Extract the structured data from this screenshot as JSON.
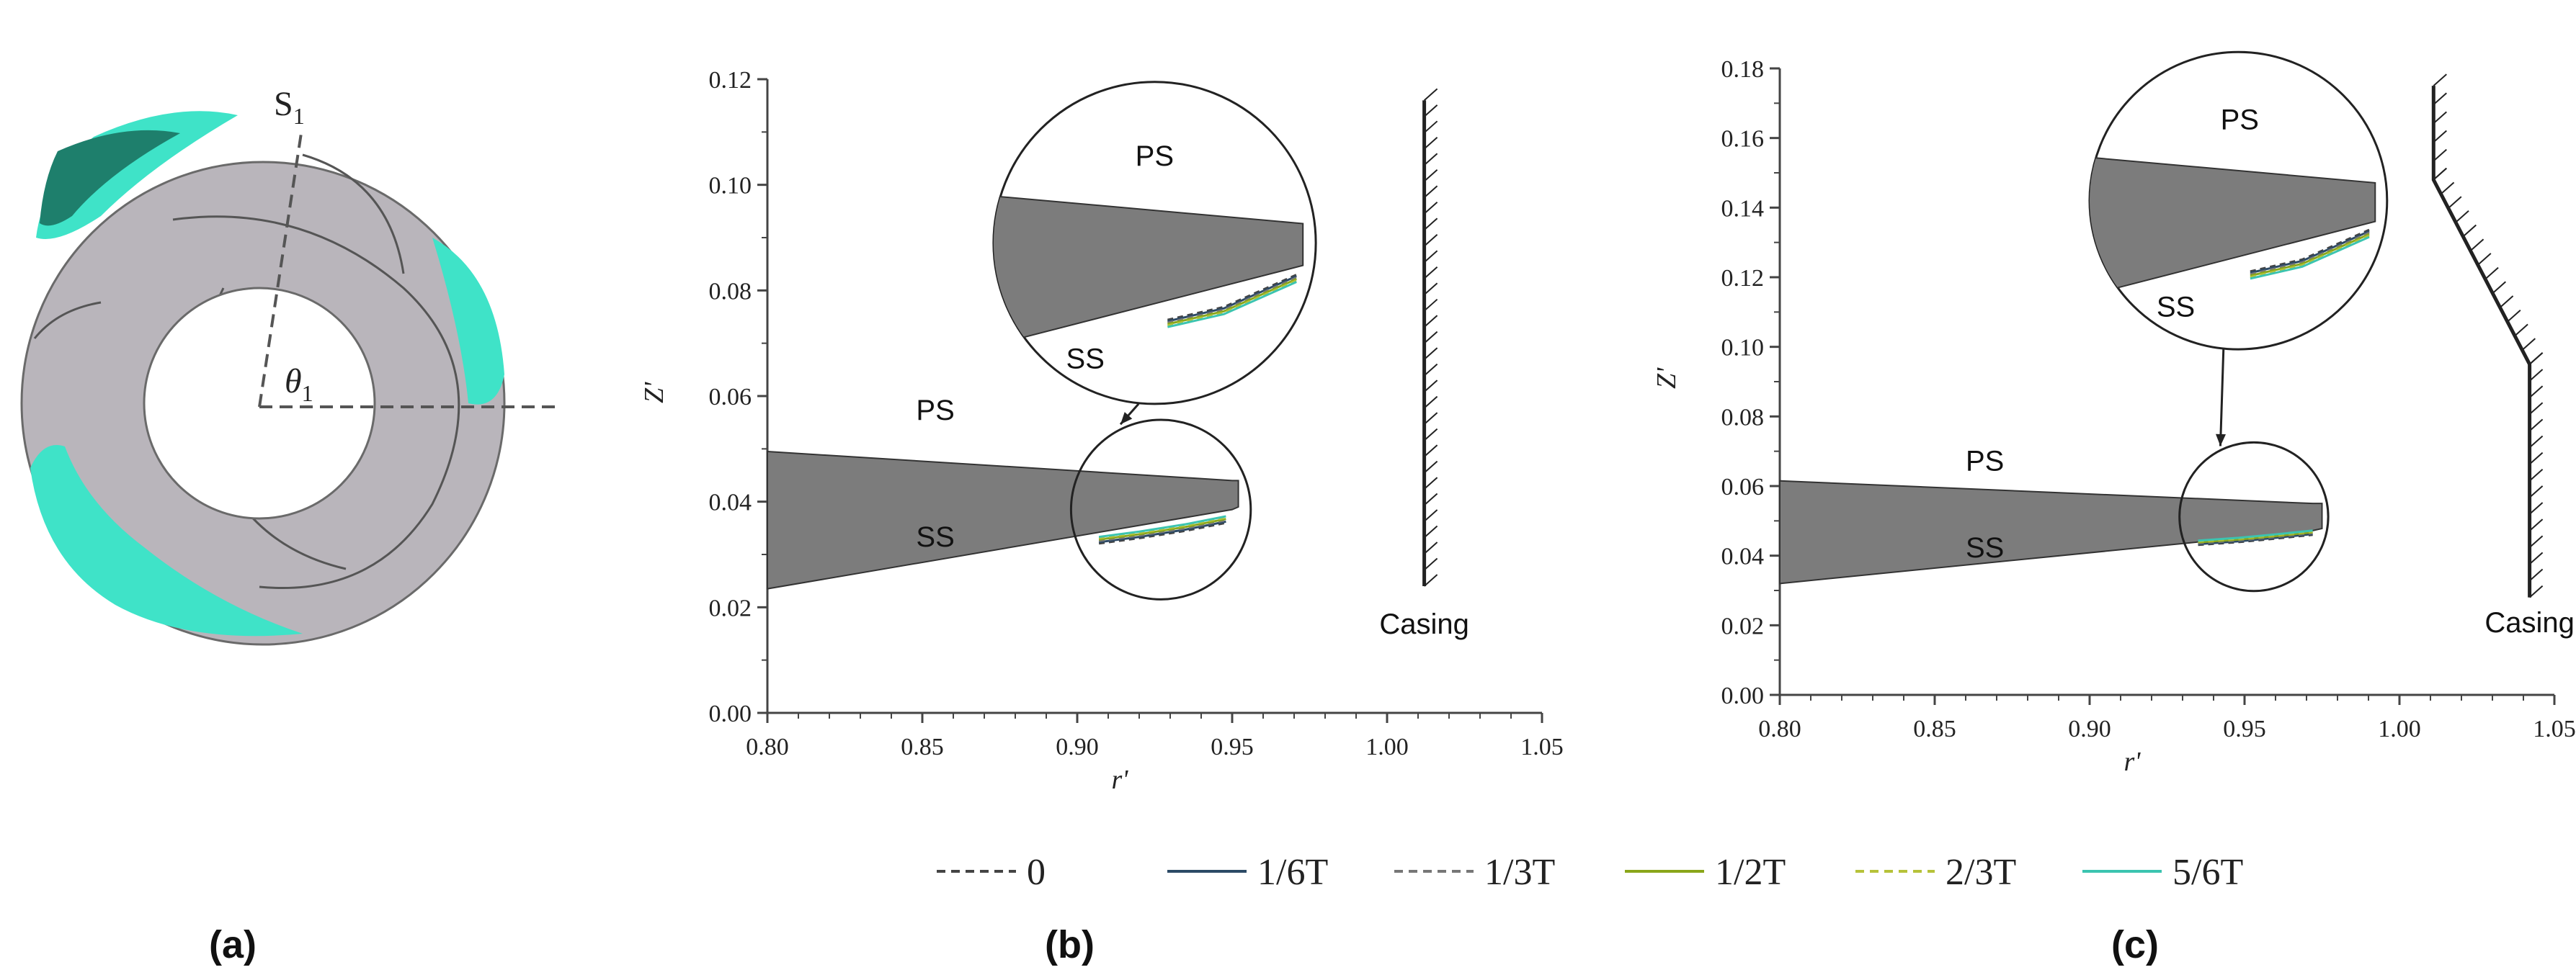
{
  "figure": {
    "panel_labels": {
      "a": "(a)",
      "b": "(b)",
      "c": "(c)"
    },
    "panel_a": {
      "s_label": "S",
      "s_subscript": "1",
      "theta_label": "θ",
      "theta_subscript": "1",
      "colors": {
        "hub": "#b9b5bb",
        "cavity": "#3fe3c8",
        "cavity_dark": "#1e7f6c",
        "outline": "#555555"
      }
    }
  },
  "legend": {
    "entries": [
      {
        "label": "0",
        "style": "dashed",
        "color": "#444444"
      },
      {
        "label": "1/6T",
        "style": "solid",
        "color": "#2c4a66"
      },
      {
        "label": "1/3T",
        "style": "dashed",
        "color": "#777777"
      },
      {
        "label": "1/2T",
        "style": "solid",
        "color": "#8aa61a"
      },
      {
        "label": "2/3T",
        "style": "dashed",
        "color": "#b6c23a"
      },
      {
        "label": "5/6T",
        "style": "solid",
        "color": "#3cc4b0"
      }
    ]
  },
  "chart_data": [
    {
      "id": "b",
      "type": "line",
      "xlabel": "r'",
      "ylabel": "Z'",
      "xlim": [
        0.8,
        1.05
      ],
      "ylim": [
        0.0,
        0.12
      ],
      "xticks": [
        0.8,
        0.85,
        0.9,
        0.95,
        1.0,
        1.05
      ],
      "xtick_labels": [
        "0.80",
        "0.85",
        "0.90",
        "0.95",
        "1.00",
        "1.05"
      ],
      "yticks": [
        0.0,
        0.02,
        0.04,
        0.06,
        0.08,
        0.1,
        0.12
      ],
      "ytick_labels": [
        "0.00",
        "0.02",
        "0.04",
        "0.06",
        "0.08",
        "0.10",
        "0.12"
      ],
      "blade": {
        "r": [
          0.8,
          0.95,
          0.952,
          0.952,
          0.95,
          0.8
        ],
        "z": [
          0.0495,
          0.044,
          0.044,
          0.039,
          0.0385,
          0.0235
        ]
      },
      "blade_color": "#7c7c7c",
      "labels": {
        "ps": "PS",
        "ss": "SS",
        "casing": "Casing"
      },
      "ps_pos": [
        0.848,
        0.0555
      ],
      "ss_pos": [
        0.848,
        0.0315
      ],
      "casing": {
        "r": [
          1.012,
          1.012
        ],
        "z": [
          0.024,
          0.116
        ]
      },
      "casing_label_pos": [
        1.012,
        0.015
      ],
      "cavity": {
        "r": [
          0.907,
          0.92,
          0.935,
          0.948
        ],
        "z": [
          0.0327,
          0.0337,
          0.0351,
          0.0366
        ]
      },
      "focus_circle": {
        "r": 0.927,
        "z": 0.0385,
        "radius_r": 0.029
      },
      "zoom_circle": {
        "center": [
          0.925,
          0.089
        ],
        "radius_r": 0.052
      }
    },
    {
      "id": "c",
      "type": "line",
      "xlabel": "r'",
      "ylabel": "Z'",
      "xlim": [
        0.8,
        1.05
      ],
      "ylim": [
        0.0,
        0.18
      ],
      "xticks": [
        0.8,
        0.85,
        0.9,
        0.95,
        1.0,
        1.05
      ],
      "xtick_labels": [
        "0.80",
        "0.85",
        "0.90",
        "0.95",
        "1.00",
        "1.05"
      ],
      "yticks": [
        0.0,
        0.02,
        0.04,
        0.06,
        0.08,
        0.1,
        0.12,
        0.14,
        0.16,
        0.18
      ],
      "ytick_labels": [
        "0.00",
        "0.02",
        "0.04",
        "0.06",
        "0.08",
        "0.10",
        "0.12",
        "0.14",
        "0.16",
        "0.18"
      ],
      "blade": {
        "r": [
          0.8,
          0.972,
          0.975,
          0.975,
          0.972,
          0.8
        ],
        "z": [
          0.0615,
          0.055,
          0.055,
          0.0478,
          0.0472,
          0.032
        ]
      },
      "blade_color": "#7c7c7c",
      "labels": {
        "ps": "PS",
        "ss": "SS",
        "casing": "Casing"
      },
      "ps_pos": [
        0.86,
        0.0645
      ],
      "ss_pos": [
        0.86,
        0.0395
      ],
      "casing": {
        "r": [
          1.011,
          1.011,
          1.042,
          1.042
        ],
        "z": [
          0.175,
          0.148,
          0.095,
          0.028
        ]
      },
      "casing_label_pos": [
        1.042,
        0.018
      ],
      "cavity": {
        "r": [
          0.935,
          0.948,
          0.96,
          0.972
        ],
        "z": [
          0.0437,
          0.0445,
          0.0455,
          0.0466
        ]
      },
      "focus_circle": {
        "r": 0.953,
        "z": 0.0512,
        "radius_r": 0.024
      },
      "zoom_circle": {
        "center": [
          0.948,
          0.142
        ],
        "radius_r": 0.048
      }
    }
  ]
}
